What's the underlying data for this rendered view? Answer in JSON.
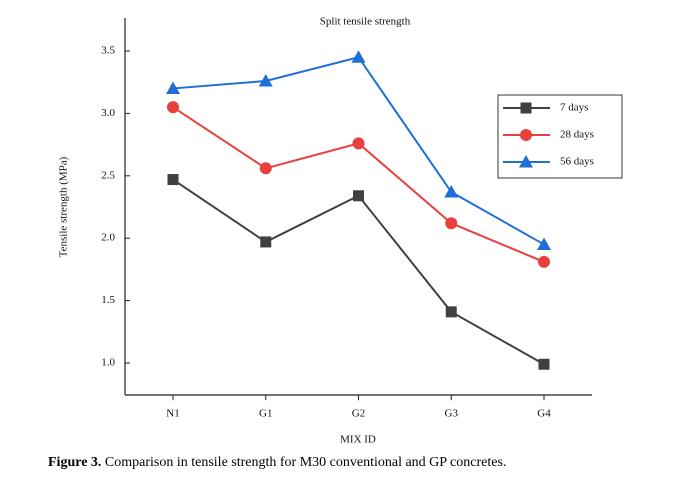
{
  "chart_data": {
    "type": "line",
    "title": "Split tensile strength",
    "x_label": "MIX ID",
    "y_label": "Tensile strength (MPa)",
    "categories": [
      "N1",
      "G1",
      "G2",
      "G3",
      "G4"
    ],
    "series": [
      {
        "name": "7 days",
        "color": "#404040",
        "marker": "square",
        "values": [
          2.47,
          1.97,
          2.34,
          1.41,
          0.99
        ]
      },
      {
        "name": "28 days",
        "color": "#e8403e",
        "marker": "circle",
        "values": [
          3.05,
          2.56,
          2.76,
          2.12,
          1.81
        ]
      },
      {
        "name": "56 days",
        "color": "#1f6fd6",
        "marker": "triangle",
        "values": [
          3.2,
          3.26,
          3.45,
          2.37,
          1.95
        ]
      }
    ],
    "ylim": [
      0.75,
      3.75
    ],
    "yticks": [
      {
        "value": 1,
        "label": "1.0"
      },
      1.5,
      {
        "value": 2,
        "label": "2.0"
      },
      2.5,
      {
        "value": 3,
        "label": "3.0"
      },
      3.5
    ],
    "grid": false,
    "legend": "upper right"
  },
  "caption": {
    "label": "Figure 3.",
    "text": " Comparison in tensile strength for M30 conventional and GP concretes."
  }
}
